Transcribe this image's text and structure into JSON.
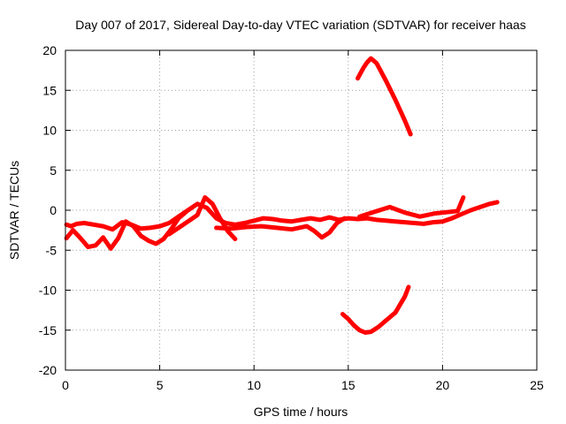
{
  "chart_data": {
    "type": "line",
    "title": "Day 007 of 2017, Sidereal Day-to-day VTEC variation (SDTVAR) for receiver haas",
    "xlabel": "GPS time / hours",
    "ylabel": "SDTVAR / TECUs",
    "xlim": [
      0,
      25
    ],
    "ylim": [
      -20,
      20
    ],
    "xticks": [
      "0",
      "5",
      "10",
      "15",
      "20",
      "25"
    ],
    "yticks": [
      "20",
      "15",
      "10",
      "5",
      "0",
      "-5",
      "-10",
      "-15",
      "-20"
    ],
    "grid": true,
    "legend": "none",
    "color": "#ff0000",
    "series": [
      {
        "x": [
          0.05,
          0.3,
          0.6,
          1.0,
          1.5,
          2.0,
          2.5,
          3.0,
          3.5,
          4.0,
          4.5,
          5.0,
          5.5,
          6.0,
          6.5,
          7.0,
          7.5,
          8.0,
          8.5,
          9.0,
          9.5,
          10.0,
          10.5,
          11.0,
          11.5,
          12.0,
          12.5,
          13.0,
          13.5,
          14.0,
          14.5,
          15.0,
          15.5,
          16.0,
          16.5,
          17.0,
          17.5,
          18.0,
          18.5,
          19.0,
          19.5,
          20.0,
          20.5,
          21.0,
          21.5,
          22.0,
          22.5,
          22.9
        ],
        "y": [
          -1.8,
          -2.0,
          -1.7,
          -1.6,
          -1.8,
          -2.0,
          -2.4,
          -1.5,
          -1.8,
          -2.3,
          -2.2,
          -2.0,
          -1.6,
          -0.8,
          0.0,
          0.8,
          0.3,
          -1.0,
          -1.6,
          -1.8,
          -1.6,
          -1.3,
          -1.0,
          -1.1,
          -1.3,
          -1.4,
          -1.2,
          -1.0,
          -1.2,
          -0.9,
          -1.2,
          -1.0,
          -1.1,
          -1.0,
          -1.2,
          -1.3,
          -1.4,
          -1.5,
          -1.6,
          -1.7,
          -1.5,
          -1.4,
          -1.0,
          -0.5,
          0.0,
          0.4,
          0.8,
          1.0
        ]
      },
      {
        "x": [
          0.05,
          0.4,
          0.8,
          1.2,
          1.6,
          2.0,
          2.4,
          2.8,
          3.2,
          3.6,
          4.0,
          4.4,
          4.8,
          5.2,
          5.6,
          6.0,
          6.4
        ],
        "y": [
          -3.5,
          -2.5,
          -3.5,
          -4.6,
          -4.4,
          -3.4,
          -4.8,
          -3.5,
          -1.4,
          -2.0,
          -3.2,
          -3.8,
          -4.2,
          -3.6,
          -2.4,
          -1.0,
          -0.2
        ]
      },
      {
        "x": [
          5.5,
          6.0,
          6.5,
          7.0,
          7.4,
          7.8,
          8.2,
          8.6,
          9.0
        ],
        "y": [
          -3.0,
          -2.2,
          -1.4,
          -0.6,
          1.6,
          0.8,
          -1.0,
          -2.6,
          -3.6
        ]
      },
      {
        "x": [
          8.0,
          8.8,
          9.6,
          10.4,
          11.2,
          12.0,
          12.8,
          13.2,
          13.6,
          14.0,
          14.4,
          14.8
        ],
        "y": [
          -2.2,
          -2.3,
          -2.1,
          -2.0,
          -2.2,
          -2.4,
          -2.0,
          -2.6,
          -3.4,
          -2.8,
          -1.6,
          -1.0
        ]
      },
      {
        "x": [
          15.6,
          16.4,
          17.2,
          18.0,
          18.8,
          19.6,
          20.4,
          20.8,
          21.1
        ],
        "y": [
          -0.8,
          -0.2,
          0.4,
          -0.3,
          -0.8,
          -0.4,
          -0.2,
          -0.1,
          1.6
        ]
      },
      {
        "x": [
          15.5,
          15.8,
          16.0,
          16.2,
          16.5,
          17.0,
          17.5,
          18.0,
          18.3
        ],
        "y": [
          16.5,
          17.8,
          18.5,
          19.0,
          18.4,
          16.2,
          13.8,
          11.2,
          9.5
        ]
      },
      {
        "x": [
          14.7,
          15.0,
          15.3,
          15.6,
          15.9,
          16.2,
          16.6,
          17.0,
          17.5,
          18.0,
          18.2
        ],
        "y": [
          -13.0,
          -13.6,
          -14.4,
          -15.0,
          -15.3,
          -15.2,
          -14.6,
          -13.8,
          -12.8,
          -10.8,
          -9.6
        ]
      }
    ]
  }
}
